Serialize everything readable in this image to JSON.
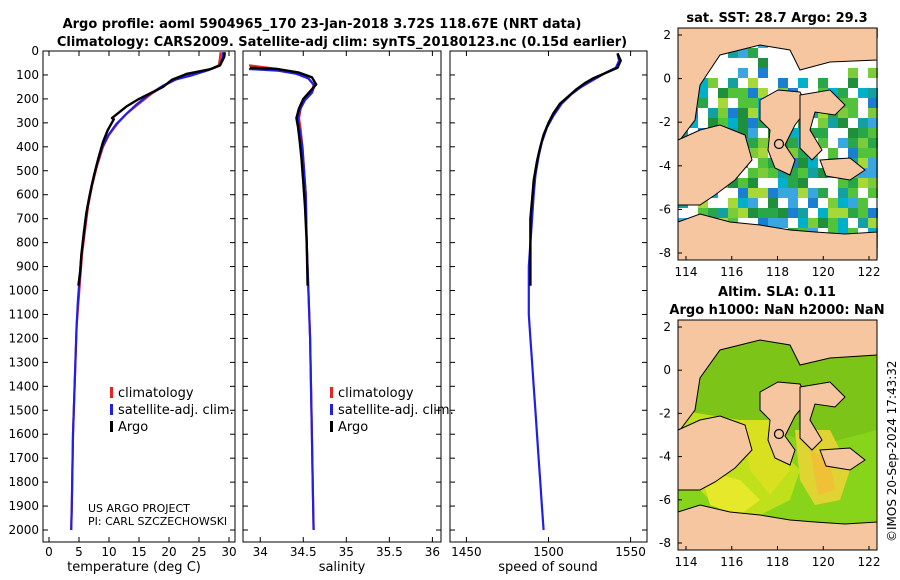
{
  "header": {
    "line1": "Argo profile: aoml 5904965_170 23-Jan-2018 3.72S 118.67E (NRT data)",
    "line2": "Climatology: CARS2009. Satellite-adj clim: synTS_20180123.nc (0.15d earlier)"
  },
  "credit": {
    "line1": "US ARGO PROJECT",
    "line2": "PI: CARL SZCZECHOWSKI"
  },
  "watermark": "©IMOS 20-Sep-2024 17:43:32",
  "legend": {
    "items": [
      "climatology",
      "satellite-adj. clim.",
      "Argo"
    ]
  },
  "colors": {
    "climatology": "#e8251f",
    "satellite": "#1f1fe8",
    "argo": "#000000",
    "land": "#f5c6a0",
    "coast": "#000000"
  },
  "maps": {
    "sst": {
      "title": "sat. SST: 28.7 Argo: 29.3",
      "xticks": [
        "114",
        "116",
        "118",
        "120",
        "122"
      ],
      "yticks": [
        "2",
        "0",
        "-2",
        "-4",
        "-6",
        "-8"
      ]
    },
    "sla": {
      "title1": "Altim. SLA: 0.11",
      "title2": "Argo h1000: NaN h2000: NaN",
      "xticks": [
        "114",
        "116",
        "118",
        "120",
        "122"
      ],
      "yticks": [
        "2",
        "0",
        "-2",
        "-4",
        "-6",
        "-8"
      ]
    }
  },
  "chart_data": [
    {
      "type": "line",
      "xlabel": "temperature (deg C)",
      "ylabel": "",
      "xlim": [
        -1,
        31
      ],
      "ylim": [
        2050,
        0
      ],
      "xticks": [
        0,
        5,
        10,
        15,
        20,
        25,
        30
      ],
      "yticks": [
        0,
        100,
        200,
        300,
        400,
        500,
        600,
        700,
        800,
        900,
        1000,
        1100,
        1200,
        1300,
        1400,
        1500,
        1600,
        1700,
        1800,
        1900,
        2000
      ],
      "series": [
        {
          "name": "climatology",
          "color": "#e8251f",
          "points": [
            [
              28.6,
              5
            ],
            [
              28.5,
              30
            ],
            [
              28.3,
              60
            ],
            [
              26.5,
              80
            ],
            [
              24.5,
              95
            ],
            [
              21.5,
              115
            ],
            [
              19.5,
              140
            ],
            [
              17,
              180
            ],
            [
              15,
              220
            ],
            [
              13,
              260
            ],
            [
              11.5,
              300
            ],
            [
              10,
              350
            ],
            [
              9,
              400
            ],
            [
              8,
              480
            ],
            [
              7.2,
              560
            ],
            [
              6.5,
              650
            ],
            [
              6,
              750
            ],
            [
              5.5,
              850
            ],
            [
              5.2,
              950
            ],
            [
              4.9,
              1050
            ],
            [
              4.6,
              1150
            ],
            [
              4.4,
              1300
            ],
            [
              4.2,
              1450
            ],
            [
              4,
              1600
            ],
            [
              3.9,
              1750
            ],
            [
              3.8,
              1900
            ],
            [
              3.7,
              2000
            ]
          ]
        },
        {
          "name": "satellite-adj. clim.",
          "color": "#1f1fe8",
          "points": [
            [
              29,
              5
            ],
            [
              28.9,
              30
            ],
            [
              28.5,
              60
            ],
            [
              26.5,
              80
            ],
            [
              24,
              100
            ],
            [
              21,
              120
            ],
            [
              19,
              145
            ],
            [
              16.5,
              185
            ],
            [
              14.5,
              225
            ],
            [
              12.8,
              265
            ],
            [
              11.2,
              305
            ],
            [
              9.8,
              355
            ],
            [
              8.9,
              400
            ],
            [
              7.9,
              480
            ],
            [
              7.1,
              560
            ],
            [
              6.4,
              650
            ],
            [
              5.9,
              750
            ],
            [
              5.4,
              850
            ],
            [
              5.1,
              950
            ],
            [
              4.8,
              1050
            ],
            [
              4.6,
              1150
            ],
            [
              4.4,
              1300
            ],
            [
              4.2,
              1450
            ],
            [
              4,
              1600
            ],
            [
              3.9,
              1750
            ],
            [
              3.8,
              1900
            ],
            [
              3.7,
              2000
            ]
          ]
        },
        {
          "name": "Argo",
          "color": "#000000",
          "points": [
            [
              29.3,
              5
            ],
            [
              29.2,
              25
            ],
            [
              28.8,
              45
            ],
            [
              28.5,
              60
            ],
            [
              27,
              75
            ],
            [
              25,
              85
            ],
            [
              23,
              95
            ],
            [
              22.5,
              100
            ],
            [
              20.5,
              120
            ],
            [
              19,
              150
            ],
            [
              17,
              175
            ],
            [
              15,
              200
            ],
            [
              13,
              230
            ],
            [
              10.5,
              280
            ],
            [
              10.8,
              285
            ],
            [
              9.8,
              330
            ],
            [
              9,
              380
            ],
            [
              8.2,
              450
            ],
            [
              7.5,
              520
            ],
            [
              6.8,
              600
            ],
            [
              6.2,
              680
            ],
            [
              5.8,
              760
            ],
            [
              5.4,
              850
            ],
            [
              5.2,
              920
            ],
            [
              4.9,
              980
            ]
          ]
        }
      ]
    },
    {
      "type": "line",
      "xlabel": "salinity",
      "ylabel": "",
      "xlim": [
        33.8,
        36.1
      ],
      "ylim": [
        2050,
        0
      ],
      "xticks": [
        34,
        34.5,
        35,
        35.5,
        36
      ],
      "series": [
        {
          "name": "climatology",
          "color": "#e8251f",
          "points": [
            [
              33.87,
              60
            ],
            [
              34.2,
              75
            ],
            [
              34.42,
              90
            ],
            [
              34.55,
              110
            ],
            [
              34.62,
              140
            ],
            [
              34.6,
              170
            ],
            [
              34.52,
              200
            ],
            [
              34.47,
              240
            ],
            [
              34.45,
              280
            ],
            [
              34.47,
              330
            ],
            [
              34.49,
              400
            ],
            [
              34.51,
              500
            ],
            [
              34.53,
              600
            ],
            [
              34.54,
              800
            ],
            [
              34.56,
              1000
            ],
            [
              34.58,
              1200
            ],
            [
              34.59,
              1400
            ],
            [
              34.6,
              1600
            ],
            [
              34.61,
              1800
            ],
            [
              34.62,
              2000
            ]
          ]
        },
        {
          "name": "satellite-adj. clim.",
          "color": "#1f1fe8",
          "points": [
            [
              33.87,
              75
            ],
            [
              34.2,
              82
            ],
            [
              34.42,
              95
            ],
            [
              34.56,
              115
            ],
            [
              34.63,
              145
            ],
            [
              34.6,
              175
            ],
            [
              34.52,
              205
            ],
            [
              34.46,
              245
            ],
            [
              34.44,
              285
            ],
            [
              34.46,
              335
            ],
            [
              34.49,
              400
            ],
            [
              34.51,
              500
            ],
            [
              34.53,
              600
            ],
            [
              34.54,
              800
            ],
            [
              34.56,
              1000
            ],
            [
              34.58,
              1200
            ],
            [
              34.59,
              1400
            ],
            [
              34.6,
              1600
            ],
            [
              34.61,
              1800
            ],
            [
              34.62,
              2000
            ]
          ]
        },
        {
          "name": "Argo",
          "color": "#000000",
          "points": [
            [
              33.88,
              70
            ],
            [
              34.2,
              75
            ],
            [
              34.45,
              90
            ],
            [
              34.6,
              110
            ],
            [
              34.65,
              140
            ],
            [
              34.6,
              160
            ],
            [
              34.5,
              200
            ],
            [
              34.45,
              240
            ],
            [
              34.42,
              280
            ],
            [
              34.44,
              320
            ],
            [
              34.46,
              380
            ],
            [
              34.48,
              450
            ],
            [
              34.5,
              550
            ],
            [
              34.52,
              650
            ],
            [
              34.54,
              800
            ],
            [
              34.55,
              980
            ]
          ]
        }
      ]
    },
    {
      "type": "line",
      "xlabel": "speed of sound",
      "ylabel": "",
      "xlim": [
        1440,
        1560
      ],
      "ylim": [
        2050,
        0
      ],
      "xticks": [
        1450,
        1500,
        1550
      ],
      "series": [
        {
          "name": "satellite-adj. clim.",
          "color": "#1f1fe8",
          "points": [
            [
              1542,
              10
            ],
            [
              1543,
              40
            ],
            [
              1541,
              70
            ],
            [
              1535,
              90
            ],
            [
              1530,
              110
            ],
            [
              1525,
              130
            ],
            [
              1520,
              150
            ],
            [
              1514,
              180
            ],
            [
              1508,
              220
            ],
            [
              1503,
              270
            ],
            [
              1499,
              320
            ],
            [
              1496,
              380
            ],
            [
              1494,
              440
            ],
            [
              1492,
              520
            ],
            [
              1491,
              600
            ],
            [
              1490,
              700
            ],
            [
              1489,
              800
            ],
            [
              1488,
              900
            ],
            [
              1488,
              1000
            ],
            [
              1488,
              1100
            ],
            [
              1489,
              1200
            ],
            [
              1490,
              1300
            ],
            [
              1491,
              1400
            ],
            [
              1492,
              1500
            ],
            [
              1493,
              1600
            ],
            [
              1494,
              1700
            ],
            [
              1495,
              1800
            ],
            [
              1496,
              1900
            ],
            [
              1497,
              2000
            ]
          ]
        },
        {
          "name": "Argo",
          "color": "#000000",
          "points": [
            [
              1542,
              10
            ],
            [
              1544,
              40
            ],
            [
              1542,
              70
            ],
            [
              1537,
              85
            ],
            [
              1532,
              100
            ],
            [
              1527,
              115
            ],
            [
              1522,
              135
            ],
            [
              1517,
              160
            ],
            [
              1512,
              190
            ],
            [
              1507,
              220
            ],
            [
              1503,
              260
            ],
            [
              1500,
              300
            ],
            [
              1497,
              350
            ],
            [
              1495,
              400
            ],
            [
              1493,
              460
            ],
            [
              1491,
              540
            ],
            [
              1490,
              620
            ],
            [
              1489,
              700
            ],
            [
              1489,
              800
            ],
            [
              1489,
              900
            ],
            [
              1489,
              980
            ]
          ]
        }
      ]
    }
  ]
}
